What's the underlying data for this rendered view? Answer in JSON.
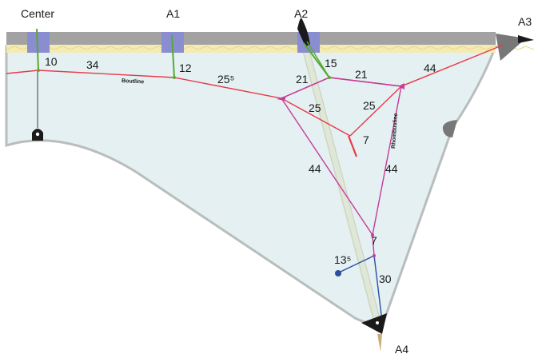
{
  "anchors": {
    "center": "Center",
    "a1": "A1",
    "a2": "A2",
    "a3": "A3",
    "a4": "A4"
  },
  "labels": {
    "n10": "10",
    "n34": "34",
    "n12": "12",
    "n25_sup": "25⁵",
    "n15": "15",
    "n21_left": "21",
    "n21_right": "21",
    "n44_top": "44",
    "n25_mid": "25",
    "n25_inner": "25",
    "n7_inner": "7",
    "n44_left": "44",
    "n44_right": "44",
    "n7_bottom": "7",
    "n13_sup": "13⁵",
    "n30": "30"
  },
  "rope_text": {
    "boltline": "Boutline",
    "rhombus": "Rhombusline"
  },
  "colors": {
    "sail_fill": "#e4f0f1",
    "sail_edge": "#b9bdbd",
    "beam": "#a2a2a2",
    "boltline": "#e83a4a",
    "pink": "#c53c9b",
    "green": "#5aa832",
    "blue": "#2b4fa0",
    "bracket": "#8a8ed0",
    "zigzag": "#f4ebb4"
  }
}
